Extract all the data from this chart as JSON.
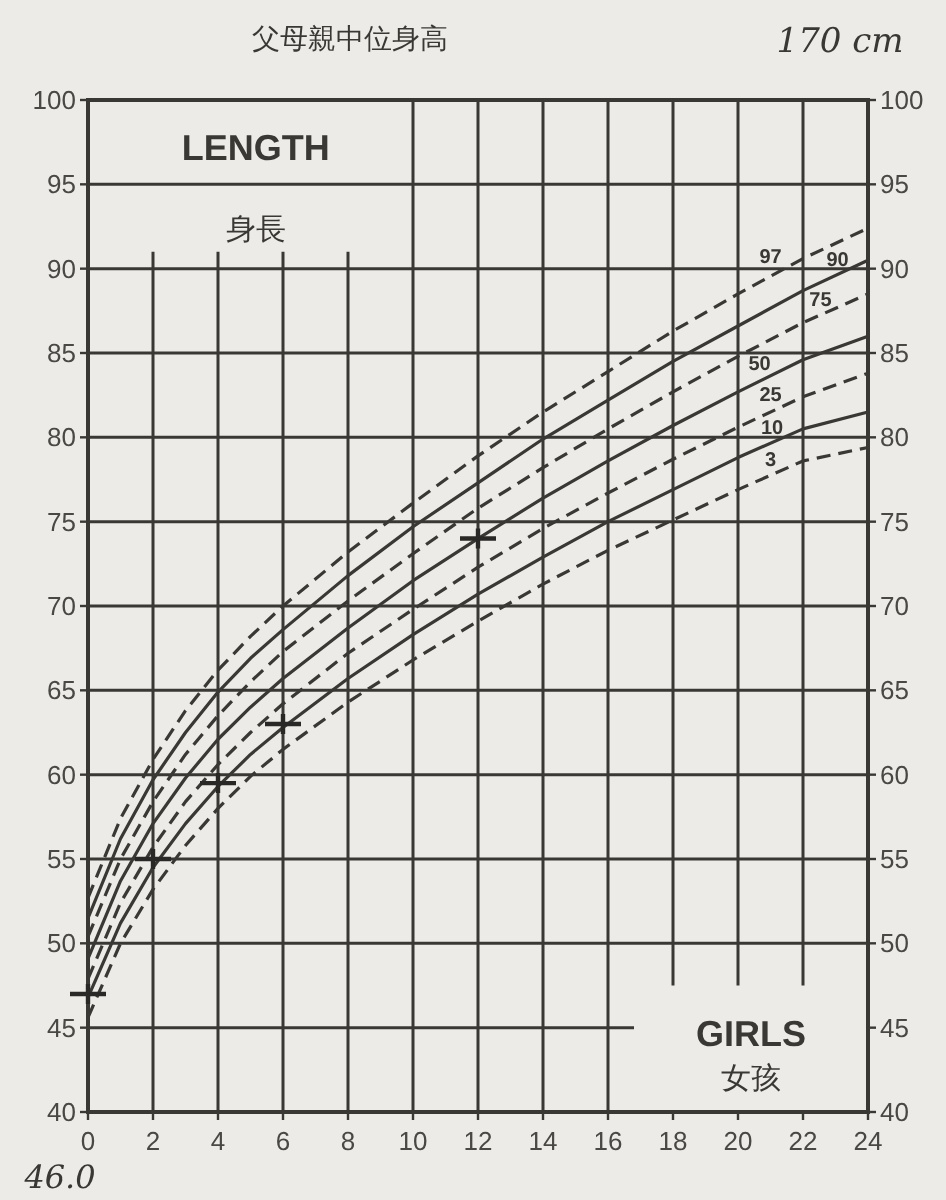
{
  "chart_data": {
    "type": "line",
    "title": "LENGTH",
    "subtitle": "身長",
    "annotations": [
      "GIRLS",
      "女孩",
      "父母親中位身高",
      "170 cm",
      "46.0"
    ],
    "x": [
      0,
      1,
      2,
      3,
      4,
      5,
      6,
      8,
      10,
      12,
      14,
      16,
      18,
      20,
      22,
      24
    ],
    "series": [
      {
        "name": "97",
        "color": "#3a3835",
        "line_style": "dashed",
        "values": [
          52.7,
          57.4,
          60.9,
          63.8,
          66.2,
          68.2,
          70.0,
          73.2,
          76.1,
          78.9,
          81.5,
          83.9,
          86.3,
          88.5,
          90.6,
          92.4
        ]
      },
      {
        "name": "90",
        "color": "#3a3835",
        "line_style": "solid",
        "values": [
          51.5,
          56.2,
          59.7,
          62.5,
          64.9,
          66.9,
          68.6,
          71.8,
          74.7,
          77.3,
          79.9,
          82.2,
          84.5,
          86.6,
          88.7,
          90.5
        ]
      },
      {
        "name": "75",
        "color": "#3a3835",
        "line_style": "dashed",
        "values": [
          50.4,
          55.0,
          58.4,
          61.2,
          63.5,
          65.5,
          67.3,
          70.3,
          73.1,
          75.8,
          78.2,
          80.5,
          82.7,
          84.8,
          86.8,
          88.5
        ]
      },
      {
        "name": "50",
        "color": "#3a3835",
        "line_style": "solid",
        "values": [
          49.1,
          53.7,
          57.1,
          59.8,
          62.1,
          64.0,
          65.7,
          68.7,
          71.5,
          74.0,
          76.4,
          78.6,
          80.7,
          82.7,
          84.6,
          86.0
        ]
      },
      {
        "name": "25",
        "color": "#3a3835",
        "line_style": "dashed",
        "values": [
          47.9,
          52.4,
          55.7,
          58.4,
          60.6,
          62.5,
          64.2,
          67.2,
          69.8,
          72.3,
          74.6,
          76.7,
          78.7,
          80.6,
          82.4,
          83.8
        ]
      },
      {
        "name": "10",
        "color": "#3a3835",
        "line_style": "solid",
        "values": [
          46.8,
          51.2,
          54.5,
          57.1,
          59.3,
          61.2,
          62.8,
          65.7,
          68.3,
          70.7,
          72.9,
          75.0,
          76.9,
          78.8,
          80.5,
          81.5
        ]
      },
      {
        "name": "3",
        "color": "#3a3835",
        "line_style": "dashed",
        "values": [
          45.6,
          50.0,
          53.2,
          55.8,
          58.0,
          59.9,
          61.5,
          64.3,
          66.8,
          69.1,
          71.3,
          73.3,
          75.1,
          76.9,
          78.6,
          79.4
        ]
      },
      {
        "type": "scatter",
        "marker": "cross",
        "color": "#2a2826",
        "x": [
          0,
          2,
          4,
          6,
          12
        ],
        "values": [
          47,
          55,
          59.5,
          63,
          74
        ]
      }
    ],
    "xlim": [
      0,
      24
    ],
    "xticks": [
      0,
      2,
      4,
      6,
      8,
      10,
      12,
      14,
      16,
      18,
      20,
      22,
      24
    ],
    "ylim": [
      40,
      100
    ],
    "yticks": [
      40,
      45,
      50,
      55,
      60,
      65,
      70,
      75,
      80,
      85,
      90,
      95,
      100
    ],
    "y2lim": [
      40,
      100
    ],
    "y2ticks": [
      40,
      45,
      50,
      55,
      60,
      65,
      70,
      75,
      80,
      85,
      90,
      95,
      100
    ],
    "grid": true,
    "legend": false
  }
}
